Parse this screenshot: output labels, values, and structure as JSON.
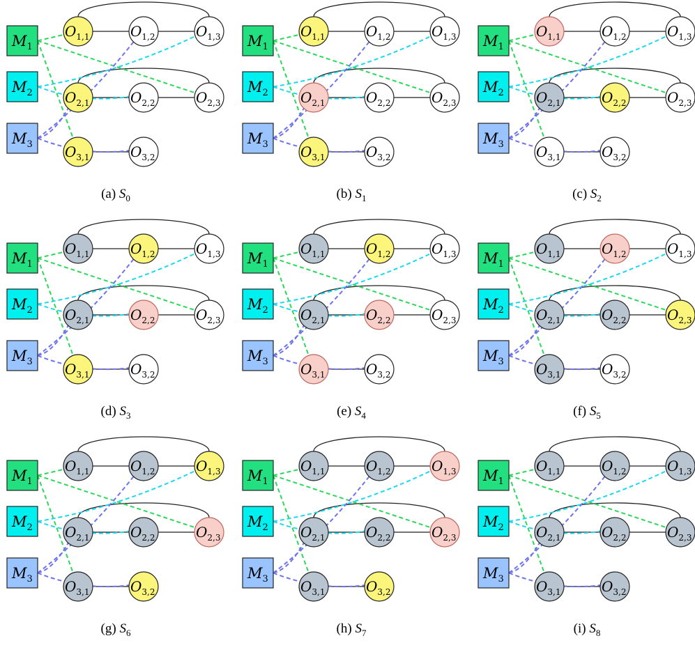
{
  "colors": {
    "machine_fill": {
      "M1": "#22e07f",
      "M2": "#00f0f0",
      "M3": "#99c4ff"
    },
    "machine_edge": {
      "M1": "#2bd85a",
      "M2": "#19d9ee",
      "M3": "#6e72ee"
    },
    "state_fill": {
      "idle": "#ffffff",
      "ready": "#fbf57c",
      "processing": "#f9cfca",
      "done": "#b8c4d0"
    },
    "state_stroke": {
      "idle": "#222222",
      "ready": "#222222",
      "processing": "#c0665e",
      "done": "#222222"
    }
  },
  "machines": [
    {
      "id": "M1",
      "name": "M",
      "sub": "1"
    },
    {
      "id": "M2",
      "name": "M",
      "sub": "2"
    },
    {
      "id": "M3",
      "name": "M",
      "sub": "3"
    }
  ],
  "operations": [
    {
      "id": "o11",
      "name": "O",
      "sub": "1,1"
    },
    {
      "id": "o12",
      "name": "O",
      "sub": "1,2"
    },
    {
      "id": "o13",
      "name": "O",
      "sub": "1,3"
    },
    {
      "id": "o21",
      "name": "O",
      "sub": "2,1"
    },
    {
      "id": "o22",
      "name": "O",
      "sub": "2,2"
    },
    {
      "id": "o23",
      "name": "O",
      "sub": "2,3"
    },
    {
      "id": "o31",
      "name": "O",
      "sub": "3,1"
    },
    {
      "id": "o32",
      "name": "O",
      "sub": "3,2"
    }
  ],
  "machine_edges": [
    {
      "machine": "M1",
      "op": "o11"
    },
    {
      "machine": "M1",
      "op": "o23"
    },
    {
      "machine": "M1",
      "op": "o31"
    },
    {
      "machine": "M2",
      "op": "o13"
    },
    {
      "machine": "M2",
      "op": "o22"
    },
    {
      "machine": "M3",
      "op": "o12"
    },
    {
      "machine": "M3",
      "op": "o21"
    },
    {
      "machine": "M3",
      "op": "o32"
    }
  ],
  "job_links": [
    [
      "o11",
      "o12"
    ],
    [
      "o12",
      "o13"
    ],
    [
      "o11",
      "o13"
    ],
    [
      "o21",
      "o22"
    ],
    [
      "o22",
      "o23"
    ],
    [
      "o21",
      "o23"
    ],
    [
      "o31",
      "o32"
    ]
  ],
  "panels": [
    {
      "tag": "(a)",
      "state_name": "S",
      "state_sub": "0",
      "states": {
        "o11": "ready",
        "o12": "idle",
        "o13": "idle",
        "o21": "ready",
        "o22": "idle",
        "o23": "idle",
        "o31": "ready",
        "o32": "idle"
      }
    },
    {
      "tag": "(b)",
      "state_name": "S",
      "state_sub": "1",
      "states": {
        "o11": "ready",
        "o12": "idle",
        "o13": "idle",
        "o21": "processing",
        "o22": "idle",
        "o23": "idle",
        "o31": "ready",
        "o32": "idle"
      }
    },
    {
      "tag": "(c)",
      "state_name": "S",
      "state_sub": "2",
      "states": {
        "o11": "processing",
        "o12": "idle",
        "o13": "idle",
        "o21": "done",
        "o22": "ready",
        "o23": "idle",
        "o31": "idle",
        "o32": "idle"
      }
    },
    {
      "tag": "(d)",
      "state_name": "S",
      "state_sub": "3",
      "states": {
        "o11": "done",
        "o12": "ready",
        "o13": "idle",
        "o21": "done",
        "o22": "processing",
        "o23": "idle",
        "o31": "ready",
        "o32": "idle"
      }
    },
    {
      "tag": "(e)",
      "state_name": "S",
      "state_sub": "4",
      "states": {
        "o11": "done",
        "o12": "ready",
        "o13": "idle",
        "o21": "done",
        "o22": "processing",
        "o23": "idle",
        "o31": "processing",
        "o32": "idle"
      }
    },
    {
      "tag": "(f)",
      "state_name": "S",
      "state_sub": "5",
      "states": {
        "o11": "done",
        "o12": "processing",
        "o13": "idle",
        "o21": "done",
        "o22": "done",
        "o23": "ready",
        "o31": "done",
        "o32": "idle"
      }
    },
    {
      "tag": "(g)",
      "state_name": "S",
      "state_sub": "6",
      "states": {
        "o11": "done",
        "o12": "done",
        "o13": "ready",
        "o21": "done",
        "o22": "done",
        "o23": "processing",
        "o31": "done",
        "o32": "ready"
      }
    },
    {
      "tag": "(h)",
      "state_name": "S",
      "state_sub": "7",
      "states": {
        "o11": "done",
        "o12": "done",
        "o13": "processing",
        "o21": "done",
        "o22": "done",
        "o23": "processing",
        "o31": "done",
        "o32": "ready"
      }
    },
    {
      "tag": "(i)",
      "state_name": "S",
      "state_sub": "8",
      "states": {
        "o11": "done",
        "o12": "done",
        "o13": "done",
        "o21": "done",
        "o22": "done",
        "o23": "done",
        "o31": "done",
        "o32": "done"
      }
    }
  ]
}
